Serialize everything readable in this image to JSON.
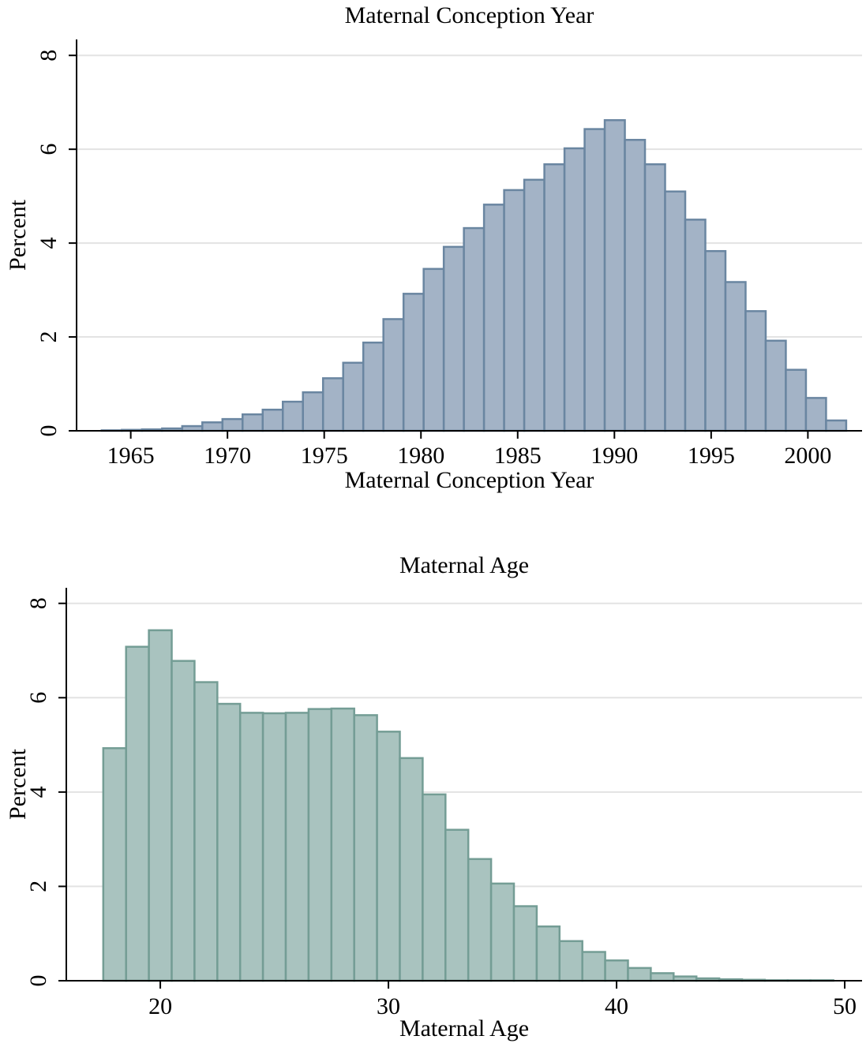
{
  "chart_data": [
    {
      "type": "histogram",
      "title": "Maternal Conception Year",
      "xlabel": "Maternal Conception Year",
      "ylabel": "Percent",
      "bins": [
        1963.5,
        1964.54,
        1965.58,
        1966.62,
        1967.66,
        1968.7,
        1969.74,
        1970.78,
        1971.82,
        1972.86,
        1973.9,
        1974.94,
        1975.98,
        1977.02,
        1978.06,
        1979.1,
        1980.14,
        1981.18,
        1982.22,
        1983.26,
        1984.3,
        1985.34,
        1986.38,
        1987.42,
        1988.46,
        1989.5,
        1990.54,
        1991.58,
        1992.62,
        1993.66,
        1994.7,
        1995.74,
        1996.78,
        1997.82,
        1998.86,
        1999.9,
        2000.94,
        2001.98
      ],
      "values": [
        0.01,
        0.02,
        0.03,
        0.05,
        0.1,
        0.18,
        0.25,
        0.35,
        0.45,
        0.62,
        0.82,
        1.12,
        1.45,
        1.88,
        2.38,
        2.92,
        3.45,
        3.92,
        4.32,
        4.82,
        5.13,
        5.35,
        5.68,
        6.02,
        6.43,
        6.62,
        6.2,
        5.68,
        5.1,
        4.5,
        3.83,
        3.17,
        2.55,
        1.92,
        1.3,
        0.7,
        0.22
      ],
      "color": "#a3b3c6",
      "edgecolor": "#6a86a1",
      "xlim": [
        1962.2,
        2002.8
      ],
      "ylim": [
        0,
        8.34
      ],
      "xticks": [
        1965,
        1970,
        1975,
        1980,
        1985,
        1990,
        1995,
        2000
      ],
      "yticks": [
        0,
        2,
        4,
        6,
        8
      ],
      "grid": true
    },
    {
      "type": "histogram",
      "title": "Maternal Age",
      "xlabel": "Maternal Age",
      "ylabel": "Percent",
      "bins": [
        17.5,
        18.5,
        19.5,
        20.5,
        21.5,
        22.5,
        23.5,
        24.5,
        25.5,
        26.5,
        27.5,
        28.5,
        29.5,
        30.5,
        31.5,
        32.5,
        33.5,
        34.5,
        35.5,
        36.5,
        37.5,
        38.5,
        39.5,
        40.5,
        41.5,
        42.5,
        43.5,
        44.5,
        45.5,
        46.5,
        47.5,
        48.5,
        49.5
      ],
      "values": [
        4.93,
        7.08,
        7.43,
        6.78,
        6.33,
        5.87,
        5.68,
        5.67,
        5.68,
        5.76,
        5.77,
        5.63,
        5.28,
        4.72,
        3.95,
        3.2,
        2.58,
        2.06,
        1.58,
        1.15,
        0.84,
        0.61,
        0.43,
        0.27,
        0.16,
        0.09,
        0.05,
        0.03,
        0.02,
        0.01,
        0.01,
        0.01
      ],
      "color": "#a9c3bf",
      "edgecolor": "#749d95",
      "xlim": [
        15.88,
        50.76
      ],
      "ylim": [
        0,
        8.33
      ],
      "xticks": [
        20,
        30,
        40,
        50
      ],
      "yticks": [
        0,
        2,
        4,
        6,
        8
      ],
      "grid": true
    }
  ]
}
